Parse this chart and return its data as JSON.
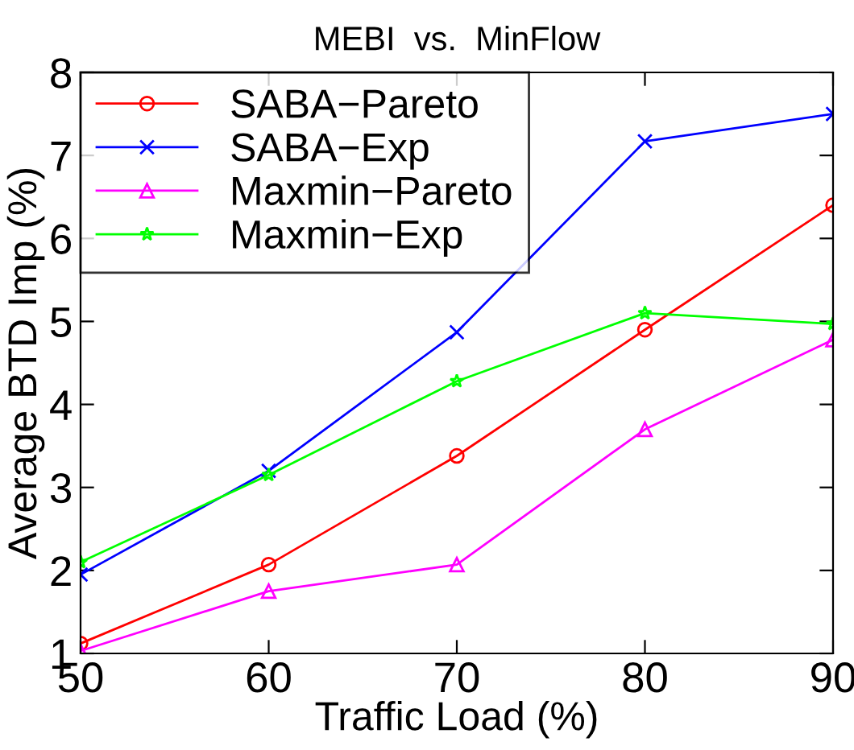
{
  "chart_data": {
    "type": "line",
    "title": "MEBI  vs.  MinFlow",
    "xlabel": "Traffic Load (%)",
    "ylabel": "Average BTD Imp (%)",
    "x": [
      50,
      60,
      70,
      80,
      90
    ],
    "series": [
      {
        "name": "SABA−Pareto",
        "color": "#ff0000",
        "marker": "circle",
        "values": [
          1.12,
          2.07,
          3.38,
          4.9,
          6.4
        ]
      },
      {
        "name": "SABA−Exp",
        "color": "#0000ff",
        "marker": "cross",
        "values": [
          1.95,
          3.2,
          4.87,
          7.17,
          7.5
        ]
      },
      {
        "name": "Maxmin−Pareto",
        "color": "#ff00ff",
        "marker": "triangle",
        "values": [
          1.03,
          1.75,
          2.07,
          3.7,
          4.78
        ]
      },
      {
        "name": "Maxmin−Exp",
        "color": "#00ff00",
        "marker": "star",
        "values": [
          2.1,
          3.15,
          4.28,
          5.1,
          4.97
        ]
      }
    ],
    "xlim": [
      50,
      90
    ],
    "xticks": [
      50,
      60,
      70,
      80,
      90
    ],
    "ylim": [
      1,
      8
    ],
    "yticks": [
      1,
      2,
      3,
      4,
      5,
      6,
      7,
      8
    ],
    "grid": false,
    "legend": "top left",
    "line_style": "solid"
  }
}
